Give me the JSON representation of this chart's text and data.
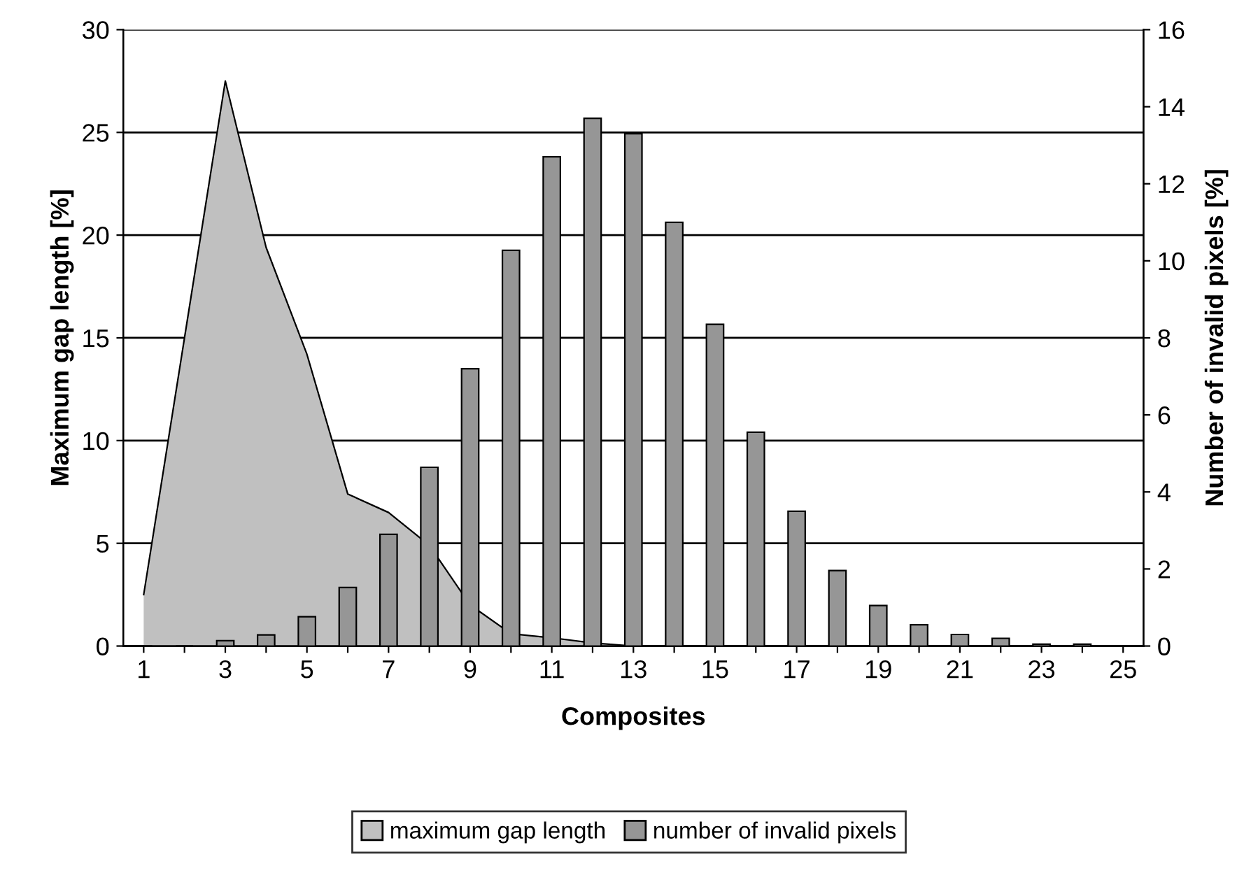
{
  "chart_data": {
    "type": "bar",
    "categories": [
      "1",
      null,
      "3",
      null,
      "5",
      null,
      "7",
      null,
      "9",
      null,
      "11",
      null,
      "13",
      null,
      "15",
      null,
      "17",
      null,
      "19",
      null,
      "21",
      null,
      "23",
      null,
      "25"
    ],
    "series": [
      {
        "name": "maximum gap length",
        "type": "area",
        "color": "#c0c0c0",
        "values": [
          2.5,
          15,
          27.5,
          19.4,
          14.2,
          7.4,
          6.5,
          4.9,
          2.0,
          0.6,
          0.4,
          0.15,
          0,
          0,
          0,
          0,
          0,
          0,
          0,
          0,
          0,
          0,
          0,
          0,
          0
        ]
      },
      {
        "name": "number of invalid pixels",
        "axis": "y2",
        "color": "#969696",
        "values": [
          0,
          0,
          0.14,
          0.29,
          0.76,
          1.52,
          2.9,
          4.64,
          7.2,
          10.27,
          12.7,
          13.7,
          13.3,
          11.0,
          8.35,
          5.55,
          3.5,
          1.96,
          1.05,
          0.55,
          0.3,
          0.2,
          0.05,
          0.05,
          0
        ]
      }
    ],
    "xlabel": "Composites",
    "ylabel": "Maximum gap length [%]",
    "y2label": "Number of invalid pixels [%]",
    "ylim": [
      0,
      30
    ],
    "yticks": [
      0,
      5,
      10,
      15,
      20,
      25,
      30
    ],
    "y2lim": [
      0,
      16
    ],
    "y2ticks": [
      0,
      2,
      4,
      6,
      8,
      10,
      12,
      14,
      16
    ],
    "grid": "y",
    "legend": "bottom"
  }
}
